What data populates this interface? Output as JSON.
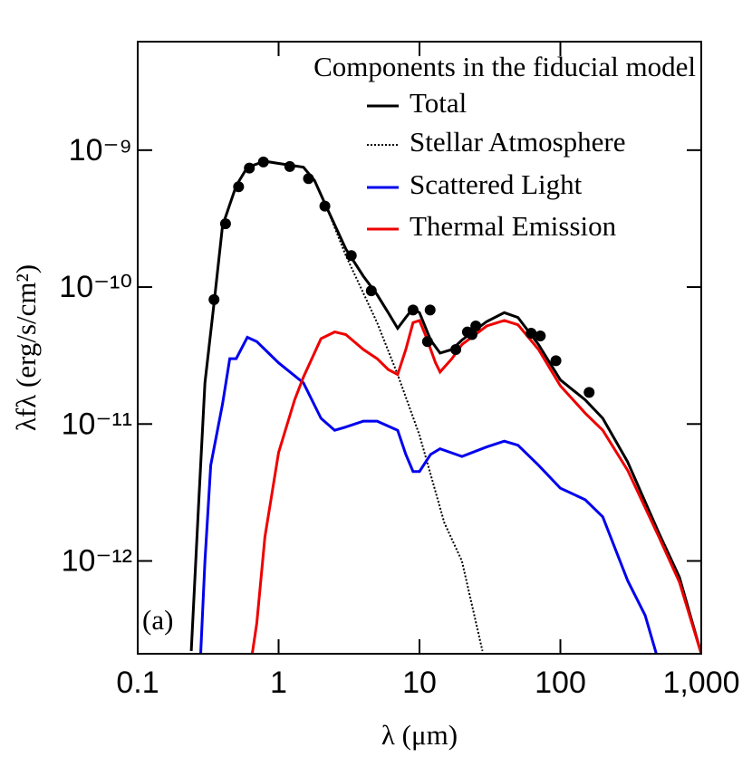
{
  "chart_data": {
    "type": "line",
    "xlabel": "λ (μm)",
    "ylabel": "λfλ (erg/s/cm²)",
    "annotation": "(a)",
    "legend_title": "Components in the fiducial model",
    "legend": "upper right",
    "xscale": "log",
    "yscale": "log",
    "xlim": [
      0.1,
      1000
    ],
    "ylim": [
      2.1e-13,
      6.2e-09
    ],
    "xticks": [
      0.1,
      1,
      10,
      100,
      {
        "value": 1000,
        "label": "1,000"
      }
    ],
    "yticks": [
      {
        "value": 1e-12,
        "label": "10⁻¹²"
      },
      {
        "value": 1e-11,
        "label": "10⁻¹¹"
      },
      {
        "value": 1e-10,
        "label": "10⁻¹⁰"
      },
      {
        "value": 1e-09,
        "label": "10⁻⁹"
      }
    ],
    "series": [
      {
        "name": "Total",
        "color": "#000000",
        "dash": "solid",
        "x": [
          0.24,
          0.27,
          0.3,
          0.35,
          0.4,
          0.5,
          0.6,
          0.8,
          1,
          1.5,
          1.8,
          2.2,
          3,
          4,
          5,
          6,
          7,
          8,
          9,
          10,
          12,
          14,
          17,
          20,
          30,
          40,
          50,
          70,
          100,
          150,
          200,
          300,
          500,
          700,
          1000
        ],
        "values": [
          2.2e-13,
          2.5e-12,
          2e-11,
          8e-11,
          2.8e-10,
          5.5e-10,
          7.5e-10,
          8.3e-10,
          8e-10,
          7.5e-10,
          6e-10,
          3.8e-10,
          1.9e-10,
          1.2e-10,
          8.8e-11,
          6.5e-11,
          5e-11,
          6e-11,
          7e-11,
          6.5e-11,
          4.1e-11,
          3.3e-11,
          3.5e-11,
          4.1e-11,
          5.6e-11,
          6.5e-11,
          6e-11,
          3.8e-11,
          2.1e-11,
          1.5e-11,
          1.1e-11,
          5.3e-12,
          1.6e-12,
          7.6e-13,
          2.1e-13
        ]
      },
      {
        "name": "Stellar Atmosphere",
        "color": "#000000",
        "dash": "dotted",
        "x": [
          0.24,
          0.27,
          0.3,
          0.35,
          0.4,
          0.5,
          0.6,
          0.8,
          1,
          1.5,
          1.8,
          2.2,
          3,
          5,
          7,
          10,
          15,
          20,
          28
        ],
        "values": [
          2.2e-13,
          2.5e-12,
          2e-11,
          8e-11,
          2.8e-10,
          5.5e-10,
          7.5e-10,
          8.3e-10,
          8e-10,
          7.5e-10,
          6e-10,
          3.8e-10,
          1.7e-10,
          5.5e-11,
          2.3e-11,
          8.3e-12,
          1.9e-12,
          1e-12,
          2.2e-13
        ]
      },
      {
        "name": "Scattered Light",
        "color": "#0000ee",
        "dash": "solid",
        "x": [
          0.28,
          0.3,
          0.33,
          0.4,
          0.45,
          0.5,
          0.6,
          0.7,
          0.8,
          1,
          1.5,
          2,
          2.5,
          3,
          4,
          5,
          7,
          8,
          9,
          10,
          12,
          14,
          20,
          30,
          40,
          50,
          70,
          100,
          150,
          200,
          300,
          400,
          480
        ],
        "values": [
          2.1e-13,
          1e-12,
          5e-12,
          1.4e-11,
          3e-11,
          3e-11,
          4.3e-11,
          4e-11,
          3.5e-11,
          2.8e-11,
          2e-11,
          1.1e-11,
          9e-12,
          9.5e-12,
          1.05e-11,
          1.05e-11,
          9e-12,
          6e-12,
          4.5e-12,
          4.5e-12,
          6e-12,
          6.6e-12,
          5.8e-12,
          6.8e-12,
          7.5e-12,
          7e-12,
          5e-12,
          3.4e-12,
          2.8e-12,
          2.1e-12,
          7.2e-13,
          4e-13,
          2.1e-13
        ]
      },
      {
        "name": "Thermal Emission",
        "color": "#ee0000",
        "dash": "solid",
        "x": [
          0.65,
          0.7,
          0.8,
          1,
          1.3,
          1.5,
          2,
          2.5,
          3,
          4,
          5,
          6,
          7,
          8,
          9,
          10,
          11,
          13,
          14,
          17,
          20,
          30,
          40,
          50,
          70,
          100,
          150,
          200,
          300,
          500,
          700,
          1000
        ],
        "values": [
          2.1e-13,
          3.5e-13,
          1.5e-12,
          6.2e-12,
          1.5e-11,
          2.2e-11,
          4.2e-11,
          4.7e-11,
          4.5e-11,
          3.5e-11,
          3e-11,
          2.5e-11,
          2.3e-11,
          3.5e-11,
          5.5e-11,
          5.7e-11,
          4.5e-11,
          2.8e-11,
          2.4e-11,
          3e-11,
          3.8e-11,
          5.2e-11,
          5.7e-11,
          5.3e-11,
          3.5e-11,
          1.9e-11,
          1.2e-11,
          9e-12,
          4.6e-12,
          1.5e-12,
          7e-13,
          2.1e-13
        ]
      }
    ],
    "points": {
      "color": "#000000",
      "x": [
        0.348,
        0.42,
        0.52,
        0.62,
        0.78,
        1.2,
        1.63,
        2.13,
        3.28,
        4.55,
        9.0,
        11.9,
        11.4,
        18.1,
        21.9,
        23.6,
        25.1,
        62,
        72,
        93,
        160
      ],
      "values": [
        8.1e-11,
        2.9e-10,
        5.4e-10,
        7.4e-10,
        8.2e-10,
        7.6e-10,
        6.2e-10,
        3.9e-10,
        1.7e-10,
        9.4e-11,
        6.8e-11,
        6.8e-11,
        4e-11,
        3.5e-11,
        4.7e-11,
        4.5e-11,
        5.2e-11,
        4.6e-11,
        4.4e-11,
        2.9e-11,
        1.7e-11
      ]
    }
  }
}
